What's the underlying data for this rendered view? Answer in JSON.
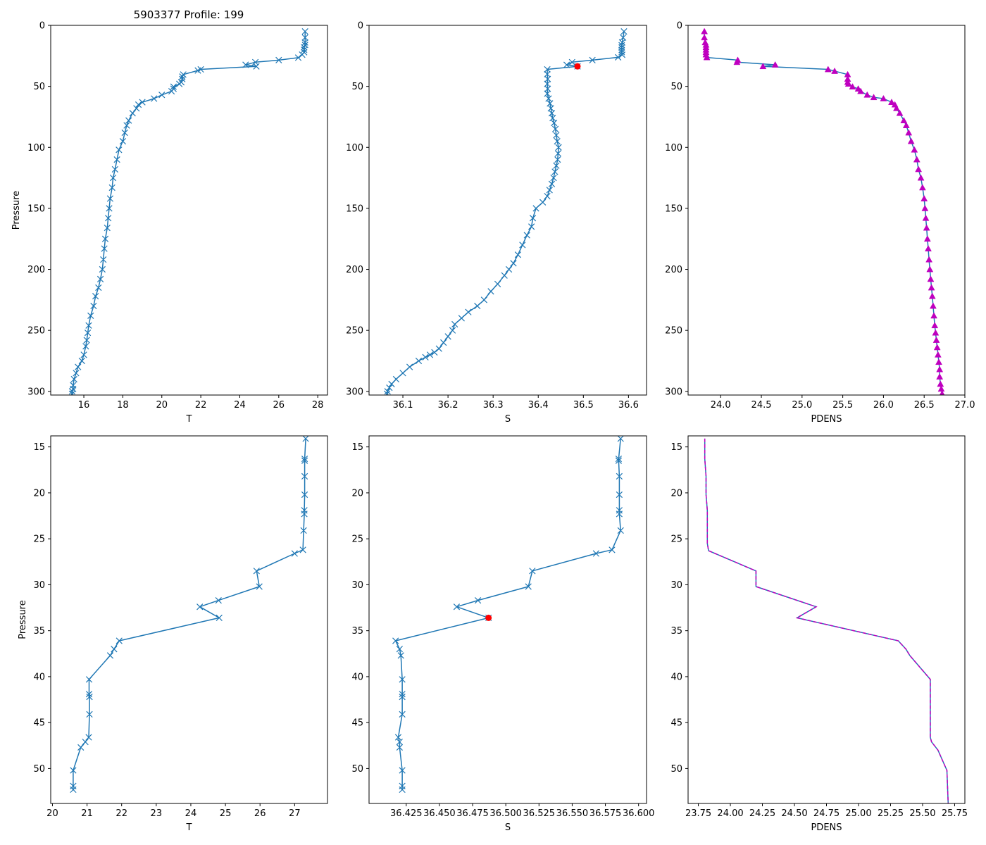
{
  "figure_title": "5903377 Profile: 199",
  "colors": {
    "line": "#1f77b4",
    "pdens_marker": "#bf00bf",
    "flag": "#ff0000"
  },
  "chart_data": [
    {
      "type": "line",
      "panel": "top-temperature",
      "xlabel": "T",
      "ylabel": "Pressure",
      "xlim": [
        14.3,
        28.5
      ],
      "ylim": [
        303,
        0
      ],
      "y_inverted": true,
      "marker": "x",
      "xticks": [
        16,
        18,
        20,
        22,
        24,
        26,
        28
      ],
      "yticks": [
        0,
        50,
        100,
        150,
        200,
        250,
        300
      ],
      "tick_labels_x": [
        "16",
        "18",
        "20",
        "22",
        "24",
        "26",
        "28"
      ],
      "tick_labels_y": [
        "0",
        "50",
        "100",
        "150",
        "200",
        "250",
        "300"
      ],
      "x": [
        27.35,
        27.35,
        27.35,
        27.35,
        27.3,
        27.3,
        27.3,
        27.2,
        27.0,
        26.0,
        24.8,
        24.3,
        24.85,
        22.0,
        21.85,
        21.1,
        21.05,
        21.05,
        21.0,
        20.9,
        20.6,
        20.6,
        20.5,
        20.0,
        19.6,
        19.0,
        18.8,
        18.7,
        18.5,
        18.3,
        18.2,
        18.1,
        18.0,
        17.8,
        17.7,
        17.6,
        17.5,
        17.45,
        17.35,
        17.3,
        17.25,
        17.2,
        17.1,
        17.05,
        17.0,
        16.95,
        16.85,
        16.75,
        16.6,
        16.5,
        16.35,
        16.25,
        16.2,
        16.15,
        16.1,
        16.0,
        15.9,
        15.7,
        15.6,
        15.5,
        15.45,
        15.45,
        15.4,
        15.4
      ],
      "y": [
        5,
        10,
        14,
        16,
        18,
        20,
        22,
        24,
        26.5,
        28.5,
        30.2,
        32.3,
        33.6,
        36.1,
        37.0,
        40.3,
        42,
        44,
        46.6,
        48,
        50.3,
        52,
        54,
        57,
        60,
        63,
        65,
        68,
        72,
        78,
        82,
        88,
        95,
        102,
        110,
        118,
        125,
        133,
        142,
        150,
        158,
        166,
        175,
        183,
        192,
        200,
        208,
        215,
        222,
        230,
        238,
        246,
        252,
        258,
        263,
        270,
        275,
        280,
        285,
        290,
        295,
        298,
        300,
        302
      ]
    },
    {
      "type": "line",
      "panel": "top-salinity",
      "xlabel": "S",
      "ylabel": "",
      "xlim": [
        36.025,
        36.64
      ],
      "ylim": [
        303,
        0
      ],
      "y_inverted": true,
      "marker": "x",
      "xticks": [
        36.1,
        36.2,
        36.3,
        36.4,
        36.5,
        36.6
      ],
      "yticks": [
        0,
        50,
        100,
        150,
        200,
        250,
        300
      ],
      "tick_labels_x": [
        "36.1",
        "36.2",
        "36.3",
        "36.4",
        "36.5",
        "36.6"
      ],
      "tick_labels_y": [
        "0",
        "50",
        "100",
        "150",
        "200",
        "250",
        "300"
      ],
      "x": [
        36.59,
        36.588,
        36.586,
        36.585,
        36.585,
        36.585,
        36.585,
        36.586,
        36.577,
        36.52,
        36.475,
        36.463,
        36.487,
        36.42,
        36.42,
        36.421,
        36.42,
        36.421,
        36.42,
        36.423,
        36.426,
        36.428,
        36.43,
        36.432,
        36.435,
        36.438,
        36.44,
        36.442,
        36.445,
        36.444,
        36.443,
        36.44,
        36.437,
        36.434,
        36.43,
        36.425,
        36.42,
        36.41,
        36.395,
        36.388,
        36.385,
        36.375,
        36.365,
        36.355,
        36.345,
        36.335,
        36.325,
        36.31,
        36.295,
        36.28,
        36.265,
        36.245,
        36.23,
        36.215,
        36.21,
        36.2,
        36.19,
        36.18,
        36.17,
        36.16,
        36.15,
        36.135,
        36.115,
        36.1,
        36.085,
        36.075,
        36.07,
        36.066,
        36.065
      ],
      "y": [
        5,
        10,
        14,
        16.3,
        18.2,
        20.2,
        21.9,
        24.1,
        26.2,
        28.5,
        30.2,
        32.4,
        33.6,
        36.1,
        40,
        44,
        48,
        52,
        56,
        60,
        64,
        68,
        72,
        76,
        80,
        85,
        90,
        95,
        100,
        105,
        110,
        115,
        120,
        125,
        130,
        135,
        140,
        145,
        150,
        158,
        165,
        172,
        180,
        188,
        195,
        200,
        205,
        212,
        218,
        225,
        230,
        235,
        240,
        245,
        250,
        255,
        260,
        265,
        268,
        270,
        272,
        275,
        280,
        285,
        290,
        294,
        297,
        300,
        302
      ],
      "flag_point": {
        "x": 36.487,
        "y": 33.6
      }
    },
    {
      "type": "line",
      "panel": "top-density",
      "xlabel": "PDENS",
      "ylabel": "",
      "xlim": [
        23.6,
        27.0
      ],
      "ylim": [
        303,
        0
      ],
      "y_inverted": true,
      "marker": "triangle",
      "xticks": [
        24.0,
        24.5,
        25.0,
        25.5,
        26.0,
        26.5,
        27.0
      ],
      "yticks": [
        0,
        50,
        100,
        150,
        200,
        250,
        300
      ],
      "tick_labels_x": [
        "24.0",
        "24.5",
        "25.0",
        "25.5",
        "26.0",
        "26.5",
        "27.0"
      ],
      "tick_labels_y": [
        "0",
        "50",
        "100",
        "150",
        "200",
        "250",
        "300"
      ],
      "x": [
        23.8,
        23.8,
        23.81,
        23.82,
        23.82,
        23.82,
        23.82,
        23.82,
        23.83,
        24.21,
        24.2,
        24.67,
        24.52,
        25.32,
        25.4,
        25.56,
        25.56,
        25.56,
        25.57,
        25.62,
        25.69,
        25.72,
        25.8,
        25.88,
        26.0,
        26.1,
        26.14,
        26.16,
        26.2,
        26.25,
        26.28,
        26.31,
        26.34,
        26.38,
        26.41,
        26.43,
        26.46,
        26.48,
        26.5,
        26.51,
        26.52,
        26.53,
        26.54,
        26.55,
        26.56,
        26.57,
        26.58,
        26.59,
        26.6,
        26.61,
        26.62,
        26.63,
        26.64,
        26.65,
        26.66,
        26.67,
        26.68,
        26.69,
        26.69,
        26.7,
        26.71,
        26.72
      ],
      "y": [
        5,
        10,
        14,
        16,
        18,
        20,
        22,
        24,
        26.3,
        28.5,
        30.2,
        32.3,
        33.6,
        36.1,
        37.5,
        40.3,
        44,
        46.6,
        48,
        50.3,
        52,
        54,
        57,
        59,
        60,
        63,
        65,
        68,
        72,
        78,
        82,
        88,
        95,
        102,
        110,
        118,
        125,
        133,
        142,
        150,
        158,
        166,
        175,
        183,
        192,
        200,
        208,
        215,
        222,
        230,
        238,
        246,
        252,
        258,
        264,
        270,
        276,
        282,
        288,
        294,
        298,
        302
      ]
    },
    {
      "type": "line",
      "panel": "bottom-temperature",
      "xlabel": "T",
      "ylabel": "Pressure",
      "xlim": [
        19.95,
        27.95
      ],
      "ylim": [
        53.8,
        13.8
      ],
      "y_inverted": true,
      "marker": "x",
      "xticks": [
        20,
        21,
        22,
        23,
        24,
        25,
        26,
        27
      ],
      "yticks": [
        15,
        20,
        25,
        30,
        35,
        40,
        45,
        50
      ],
      "tick_labels_x": [
        "20",
        "21",
        "22",
        "23",
        "24",
        "25",
        "26",
        "27"
      ],
      "tick_labels_y": [
        "15",
        "20",
        "25",
        "30",
        "35",
        "40",
        "45",
        "50"
      ],
      "x": [
        27.32,
        27.29,
        27.29,
        27.29,
        27.29,
        27.28,
        27.28,
        27.26,
        27.24,
        27.0,
        25.9,
        25.98,
        24.8,
        24.26,
        24.82,
        21.93,
        21.78,
        21.67,
        21.06,
        21.06,
        21.07,
        21.07,
        21.05,
        20.95,
        20.82,
        20.6,
        20.6,
        20.6
      ],
      "y": [
        14.1,
        16.3,
        16.5,
        18.2,
        20.2,
        21.9,
        22.3,
        24.1,
        26.2,
        26.6,
        28.5,
        30.2,
        31.7,
        32.4,
        33.6,
        36.1,
        37.0,
        37.7,
        40.3,
        41.9,
        42.2,
        44.1,
        46.6,
        47.1,
        47.7,
        50.2,
        51.9,
        52.3
      ]
    },
    {
      "type": "line",
      "panel": "bottom-salinity",
      "xlabel": "S",
      "ylabel": "",
      "xlim": [
        36.397,
        36.606
      ],
      "ylim": [
        53.8,
        13.8
      ],
      "y_inverted": true,
      "marker": "x",
      "xticks": [
        36.425,
        36.45,
        36.475,
        36.5,
        36.525,
        36.55,
        36.575,
        36.6
      ],
      "yticks": [
        15,
        20,
        25,
        30,
        35,
        40,
        45,
        50
      ],
      "tick_labels_x": [
        "36.425",
        "36.450",
        "36.475",
        "36.500",
        "36.525",
        "36.550",
        "36.575",
        "36.600"
      ],
      "tick_labels_y": [
        "15",
        "20",
        "25",
        "30",
        "35",
        "40",
        "45",
        "50"
      ],
      "x": [
        36.5865,
        36.585,
        36.585,
        36.5855,
        36.5855,
        36.5855,
        36.5855,
        36.5865,
        36.58,
        36.568,
        36.52,
        36.517,
        36.479,
        36.463,
        36.487,
        36.417,
        36.42,
        36.421,
        36.422,
        36.422,
        36.422,
        36.422,
        36.419,
        36.42,
        36.42,
        36.422,
        36.422,
        36.422
      ],
      "y": [
        14.1,
        16.3,
        16.5,
        18.2,
        20.2,
        21.9,
        22.3,
        24.1,
        26.2,
        26.6,
        28.5,
        30.2,
        31.7,
        32.4,
        33.6,
        36.1,
        37.0,
        37.7,
        40.3,
        41.9,
        42.2,
        44.1,
        46.6,
        47.1,
        47.7,
        50.2,
        51.9,
        52.3
      ],
      "flag_point": {
        "x": 36.487,
        "y": 33.6
      }
    },
    {
      "type": "line",
      "panel": "bottom-density",
      "xlabel": "PDENS",
      "ylabel": "",
      "xlim": [
        23.67,
        25.83
      ],
      "ylim": [
        53.8,
        13.8
      ],
      "y_inverted": true,
      "marker": "none",
      "xticks": [
        23.75,
        24.0,
        24.25,
        24.5,
        24.75,
        25.0,
        25.25,
        25.5,
        25.75
      ],
      "yticks": [
        15,
        20,
        25,
        30,
        35,
        40,
        45,
        50
      ],
      "tick_labels_x": [
        "23.75",
        "24.00",
        "24.25",
        "24.50",
        "24.75",
        "25.00",
        "25.25",
        "25.50",
        "25.75"
      ],
      "tick_labels_y": [
        "15",
        "20",
        "25",
        "30",
        "35",
        "40",
        "45",
        "50"
      ],
      "x": [
        23.8,
        23.8,
        23.81,
        23.81,
        23.82,
        23.82,
        23.82,
        23.82,
        23.83,
        24.2,
        24.2,
        24.67,
        24.52,
        25.31,
        25.37,
        25.4,
        25.56,
        25.56,
        25.56,
        25.56,
        25.56,
        25.57,
        25.62,
        25.69,
        25.7
      ],
      "y": [
        14.1,
        16.3,
        18.2,
        20.2,
        21.9,
        22.3,
        24.1,
        25.5,
        26.3,
        28.5,
        30.2,
        32.4,
        33.6,
        36.1,
        37.0,
        37.7,
        40.3,
        41.9,
        44.1,
        45.5,
        46.6,
        47.1,
        48.0,
        50.2,
        53.8
      ]
    }
  ]
}
